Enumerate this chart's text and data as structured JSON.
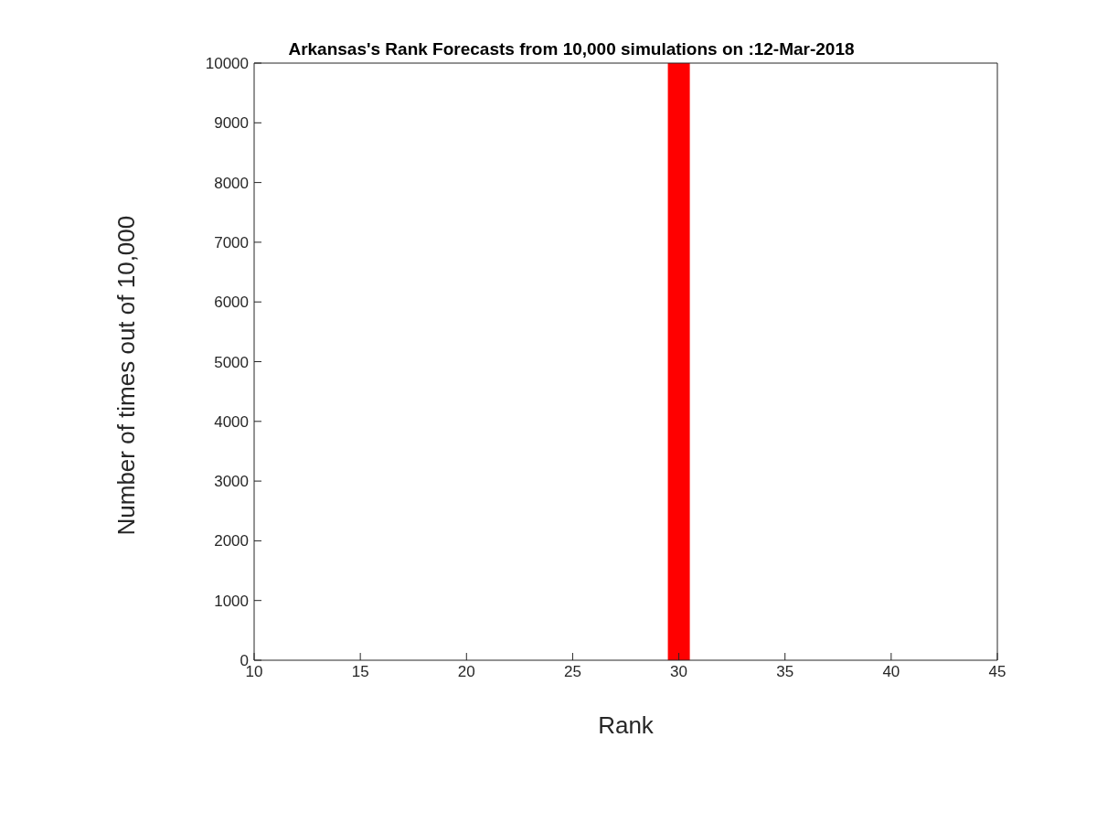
{
  "chart_data": {
    "type": "bar",
    "title": "Arkansas's Rank Forecasts from 10,000 simulations on :12-Mar-2018",
    "xlabel": "Rank",
    "ylabel": "Number of times out of 10,000",
    "x": [
      30
    ],
    "values": [
      10000
    ],
    "color": "#ff0000",
    "xlim": [
      10,
      45
    ],
    "xticks": [
      10,
      15,
      20,
      25,
      30,
      35,
      40,
      45
    ],
    "ylim": [
      0,
      10000
    ],
    "yticks": [
      0,
      1000,
      2000,
      3000,
      4000,
      5000,
      6000,
      7000,
      8000,
      9000,
      10000
    ],
    "grid": false,
    "legend": false
  }
}
